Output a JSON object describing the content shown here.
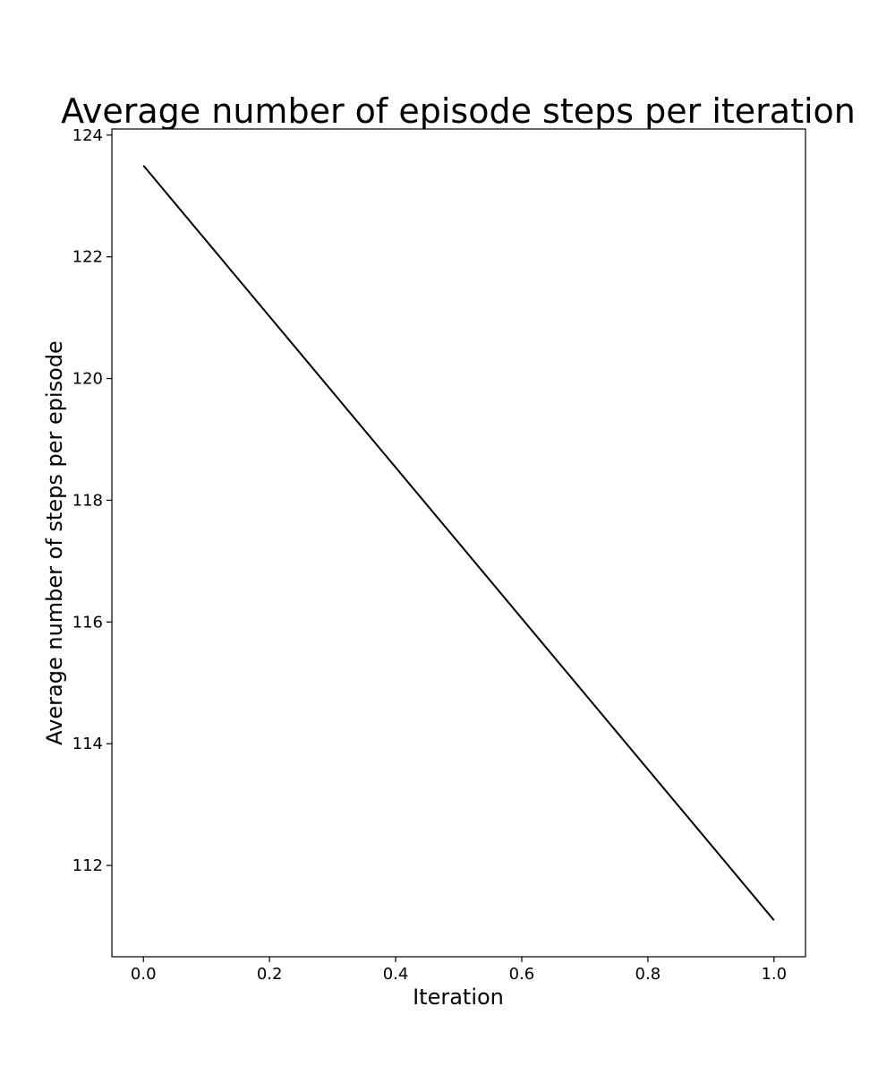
{
  "chart_data": {
    "type": "line",
    "title": "Average number of episode steps per iteration",
    "xlabel": "Iteration",
    "ylabel": "Average number of steps per episode",
    "xlim": [
      -0.05,
      1.05
    ],
    "ylim": [
      110.5,
      124.1
    ],
    "xticks": [
      0.0,
      0.2,
      0.4,
      0.6,
      0.8,
      1.0
    ],
    "xtick_labels": [
      "0.0",
      "0.2",
      "0.4",
      "0.6",
      "0.8",
      "1.0"
    ],
    "yticks": [
      112,
      114,
      116,
      118,
      120,
      122,
      124
    ],
    "ytick_labels": [
      "112",
      "114",
      "116",
      "118",
      "120",
      "122",
      "124"
    ],
    "grid": false,
    "series": [
      {
        "x": [
          0.0,
          1.0
        ],
        "y": [
          123.5,
          111.1
        ],
        "color": "#000000"
      }
    ]
  }
}
